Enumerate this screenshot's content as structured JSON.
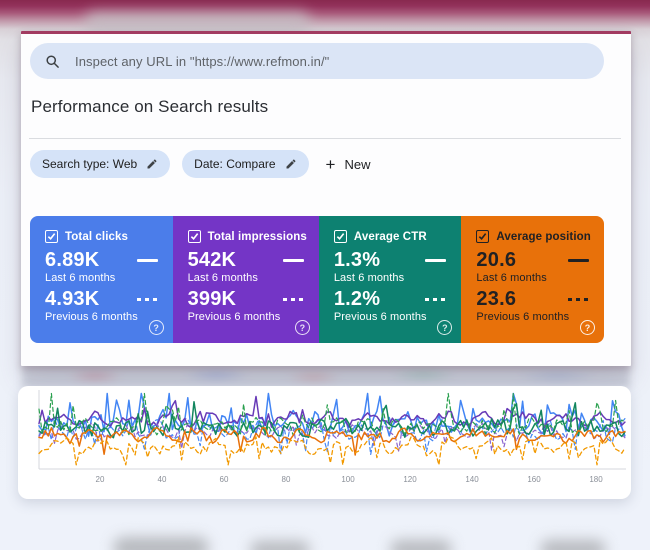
{
  "search_bar": {
    "placeholder": "Inspect any URL in \"https://www.refmon.in/\""
  },
  "header": {
    "title": "Performance on Search results"
  },
  "filters": {
    "chips": [
      {
        "label": "Search type: Web"
      },
      {
        "label": "Date: Compare"
      }
    ],
    "new_button_label": "New"
  },
  "metrics": {
    "cards": [
      {
        "label": "Total clicks",
        "checked": true,
        "current_value": "6.89K",
        "current_caption": "Last 6 months",
        "previous_value": "4.93K",
        "previous_caption": "Previous 6 months",
        "color": "#4b7dea",
        "text_color": "#ffffff",
        "help_color": "rgba(255,255,255,0.85)"
      },
      {
        "label": "Total impressions",
        "checked": true,
        "current_value": "542K",
        "current_caption": "Last 6 months",
        "previous_value": "399K",
        "previous_caption": "Previous 6 months",
        "color": "#7435c6",
        "text_color": "#ffffff",
        "help_color": "rgba(255,255,255,0.85)"
      },
      {
        "label": "Average CTR",
        "checked": true,
        "current_value": "1.3%",
        "current_caption": "Last 6 months",
        "previous_value": "1.2%",
        "previous_caption": "Previous 6 months",
        "color": "#0d8171",
        "text_color": "#ffffff",
        "help_color": "rgba(255,255,255,0.85)"
      },
      {
        "label": "Average position",
        "checked": true,
        "current_value": "20.6",
        "current_caption": "Last 6 months",
        "previous_value": "23.6",
        "previous_caption": "Previous 6 months",
        "color": "#e8710a",
        "text_color": "#202124",
        "help_color": "rgba(255,255,255,0.9)"
      }
    ]
  },
  "chart_data": {
    "type": "line",
    "title": "",
    "xlabel": "",
    "ylabel": "",
    "grid": false,
    "legend_position": "none",
    "x_ticks": [
      20,
      40,
      60,
      80,
      100,
      120,
      140,
      160,
      180
    ],
    "x_range": [
      0,
      189
    ],
    "series": [
      {
        "name": "Clicks - Last 6 months",
        "color": "#4285f4",
        "line": "solid",
        "width": 1.5,
        "gen": {
          "seed": 11,
          "base": 0.42,
          "wave": 0.07,
          "freq": 0.9,
          "phase": 0.4,
          "noise": 0.24,
          "spike_chance": 0.13,
          "spike_amp": 0.33,
          "spike_dir": -1
        }
      },
      {
        "name": "Clicks - Previous 6 months",
        "color": "#4285f4",
        "line": "dashed",
        "width": 1.2,
        "gen": {
          "seed": 22,
          "base": 0.5,
          "wave": 0.06,
          "freq": 0.75,
          "phase": 1.1,
          "noise": 0.22,
          "spike_chance": 0.1,
          "spike_amp": 0.3,
          "spike_dir": 1
        }
      },
      {
        "name": "Impressions - Last 6 months",
        "color": "#673ab7",
        "line": "solid",
        "width": 1.5,
        "gen": {
          "seed": 33,
          "base": 0.36,
          "wave": 0.06,
          "freq": 0.5,
          "phase": 2.0,
          "noise": 0.12,
          "spike_chance": 0.05,
          "spike_amp": 0.15,
          "spike_dir": -1
        }
      },
      {
        "name": "Impressions - Previous 6 months",
        "color": "#8a63ce",
        "line": "dashed",
        "width": 1.2,
        "gen": {
          "seed": 44,
          "base": 0.52,
          "wave": 0.05,
          "freq": 0.6,
          "phase": 0.7,
          "noise": 0.12,
          "spike_chance": 0.05,
          "spike_amp": 0.12,
          "spike_dir": 1
        }
      },
      {
        "name": "CTR - Last 6 months",
        "color": "#12865e",
        "line": "solid",
        "width": 1.5,
        "gen": {
          "seed": 55,
          "base": 0.48,
          "wave": 0.05,
          "freq": 0.8,
          "phase": 1.6,
          "noise": 0.18,
          "spike_chance": 0.07,
          "spike_amp": 0.22,
          "spike_dir": -1
        }
      },
      {
        "name": "CTR - Previous 6 months",
        "color": "#2aa04f",
        "line": "dashed",
        "width": 1.2,
        "gen": {
          "seed": 66,
          "base": 0.46,
          "wave": 0.05,
          "freq": 0.7,
          "phase": 0.2,
          "noise": 0.16,
          "spike_chance": 0.08,
          "spike_amp": 0.38,
          "spike_dir": -1
        }
      },
      {
        "name": "Position - Last 6 months",
        "color": "#e8710a",
        "line": "solid",
        "width": 1.5,
        "gen": {
          "seed": 77,
          "base": 0.58,
          "wave": 0.05,
          "freq": 0.55,
          "phase": 2.4,
          "noise": 0.12,
          "spike_chance": 0.04,
          "spike_amp": 0.1,
          "spike_dir": 1
        }
      },
      {
        "name": "Position - Previous 6 months",
        "color": "#f29900",
        "line": "dashed",
        "width": 1.3,
        "gen": {
          "seed": 88,
          "base": 0.72,
          "wave": 0.07,
          "freq": 0.5,
          "phase": 1.0,
          "noise": 0.12,
          "spike_chance": 0.12,
          "spike_amp": 0.22,
          "spike_dir": 1
        }
      }
    ]
  }
}
